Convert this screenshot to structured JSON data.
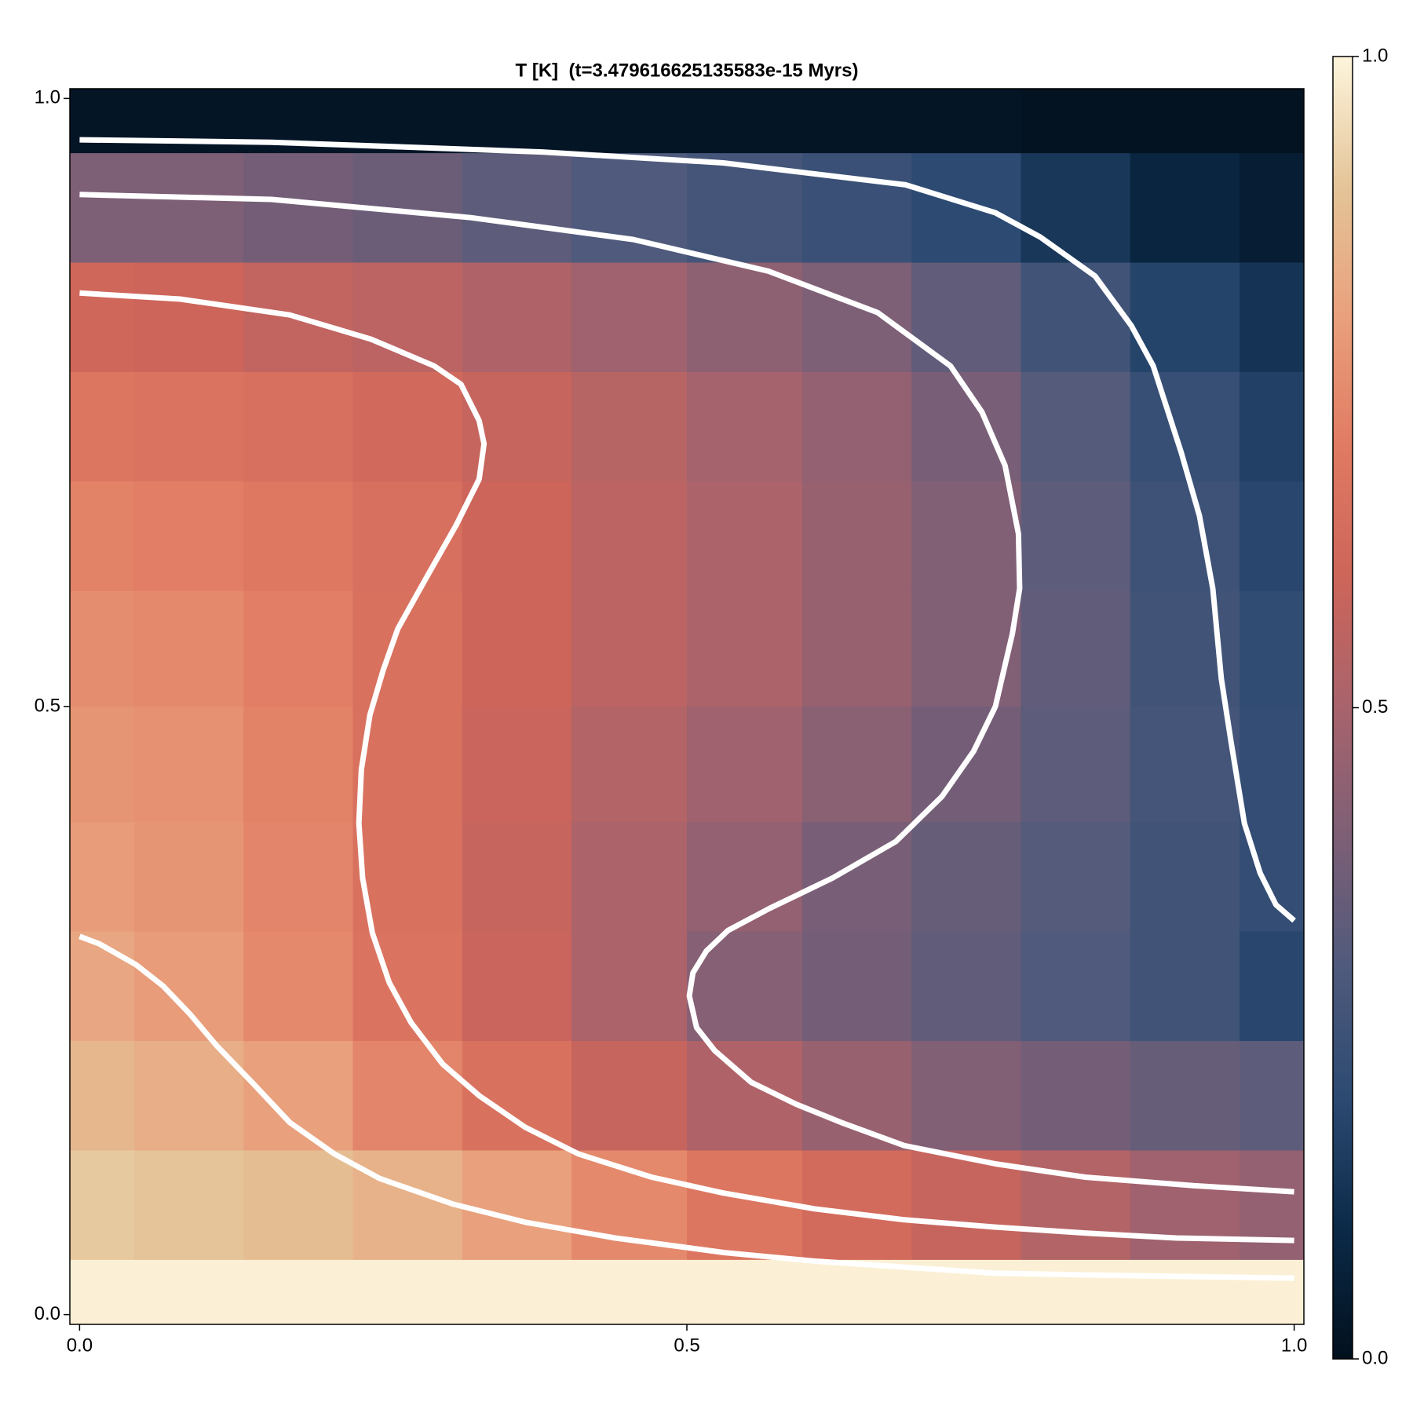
{
  "chart_data": {
    "type": "heatmap",
    "title": "T [K]  (t=3.479616625135583e-15 Myrs)",
    "x": [
      0,
      0.09,
      0.18,
      0.27,
      0.36,
      0.45,
      0.55,
      0.64,
      0.73,
      0.82,
      0.91,
      1
    ],
    "y": [
      1,
      0.91,
      0.82,
      0.73,
      0.64,
      0.55,
      0.45,
      0.36,
      0.27,
      0.18,
      0.09,
      0
    ],
    "z": [
      [
        0.02,
        0.02,
        0.02,
        0.02,
        0.02,
        0.02,
        0.02,
        0.02,
        0.02,
        0.01,
        0.01,
        0.01
      ],
      [
        0.4,
        0.4,
        0.38,
        0.36,
        0.33,
        0.3,
        0.27,
        0.24,
        0.2,
        0.14,
        0.08,
        0.05
      ],
      [
        0.61,
        0.6,
        0.57,
        0.55,
        0.52,
        0.48,
        0.44,
        0.4,
        0.34,
        0.26,
        0.18,
        0.13
      ],
      [
        0.68,
        0.67,
        0.65,
        0.62,
        0.58,
        0.54,
        0.49,
        0.45,
        0.39,
        0.31,
        0.23,
        0.17
      ],
      [
        0.72,
        0.71,
        0.69,
        0.65,
        0.6,
        0.55,
        0.51,
        0.46,
        0.41,
        0.33,
        0.25,
        0.19
      ],
      [
        0.75,
        0.74,
        0.71,
        0.66,
        0.6,
        0.55,
        0.51,
        0.46,
        0.41,
        0.34,
        0.26,
        0.21
      ],
      [
        0.77,
        0.76,
        0.72,
        0.66,
        0.59,
        0.53,
        0.48,
        0.43,
        0.38,
        0.33,
        0.27,
        0.22
      ],
      [
        0.79,
        0.77,
        0.73,
        0.66,
        0.58,
        0.51,
        0.45,
        0.39,
        0.35,
        0.31,
        0.26,
        0.22
      ],
      [
        0.82,
        0.79,
        0.74,
        0.67,
        0.59,
        0.51,
        0.42,
        0.38,
        0.34,
        0.3,
        0.26,
        0.19
      ],
      [
        0.86,
        0.84,
        0.8,
        0.73,
        0.66,
        0.58,
        0.52,
        0.46,
        0.41,
        0.38,
        0.35,
        0.33
      ],
      [
        0.91,
        0.9,
        0.88,
        0.85,
        0.8,
        0.74,
        0.68,
        0.63,
        0.58,
        0.53,
        0.48,
        0.45
      ],
      [
        0.99,
        0.99,
        0.99,
        0.99,
        0.99,
        0.99,
        0.99,
        0.99,
        0.99,
        0.99,
        0.99,
        0.99
      ]
    ],
    "xlim": [
      -0.008,
      1.008
    ],
    "ylim": [
      -0.008,
      1.008
    ],
    "xticks": [
      {
        "value": 0,
        "label": "0.0"
      },
      0.5,
      {
        "value": 1,
        "label": "1.0"
      }
    ],
    "yticks": [
      {
        "value": 0,
        "label": "0.0"
      },
      0.5,
      {
        "value": 1,
        "label": "1.0"
      }
    ],
    "colormap": [
      "#02101d",
      "#0b2a48",
      "#2c4a72",
      "#4f5a7c",
      "#7d5f76",
      "#a8636c",
      "#cd655a",
      "#e07a62",
      "#e9a07c",
      "#e4c498",
      "#fdf5dc"
    ],
    "clim": [
      0,
      1
    ],
    "cticks": [
      {
        "value": 0,
        "label": "0.0"
      },
      0.5,
      {
        "value": 1,
        "label": "1.0"
      }
    ],
    "contours": [
      {
        "color": "#ffffff",
        "x": [
          0,
          0.158,
          0.381,
          0.53,
          0.68,
          0.754,
          0.791,
          0.836,
          0.866,
          0.884,
          0.907,
          0.922,
          0.933,
          0.94,
          0.948,
          0.959,
          0.972,
          0.985,
          1.0
        ],
        "y": [
          0.966,
          0.964,
          0.956,
          0.947,
          0.929,
          0.906,
          0.886,
          0.854,
          0.813,
          0.78,
          0.709,
          0.657,
          0.597,
          0.523,
          0.471,
          0.404,
          0.363,
          0.337,
          0.324
        ]
      },
      {
        "color": "#ffffff",
        "x": [
          0,
          0.158,
          0.322,
          0.456,
          0.567,
          0.657,
          0.717,
          0.743,
          0.762,
          0.773,
          0.774,
          0.768,
          0.754,
          0.736,
          0.71,
          0.672,
          0.62,
          0.568,
          0.534,
          0.516,
          0.505,
          0.502,
          0.508,
          0.523,
          0.553,
          0.59,
          0.627,
          0.679,
          0.754,
          0.828,
          0.918,
          1.0
        ],
        "y": [
          0.921,
          0.917,
          0.902,
          0.884,
          0.858,
          0.824,
          0.78,
          0.742,
          0.698,
          0.642,
          0.597,
          0.56,
          0.5,
          0.463,
          0.426,
          0.389,
          0.359,
          0.334,
          0.316,
          0.299,
          0.281,
          0.262,
          0.236,
          0.217,
          0.191,
          0.173,
          0.158,
          0.139,
          0.124,
          0.113,
          0.106,
          0.101
        ]
      },
      {
        "color": "#ffffff",
        "x": [
          0,
          0.083,
          0.173,
          0.24,
          0.292,
          0.314,
          0.329,
          0.333,
          0.329,
          0.31,
          0.285,
          0.262,
          0.25,
          0.239,
          0.232,
          0.23,
          0.233,
          0.241,
          0.255,
          0.273,
          0.299,
          0.329,
          0.367,
          0.411,
          0.471,
          0.53,
          0.605,
          0.679,
          0.754,
          0.829,
          0.903,
          1.0
        ],
        "y": [
          0.84,
          0.835,
          0.822,
          0.802,
          0.78,
          0.765,
          0.735,
          0.716,
          0.687,
          0.649,
          0.605,
          0.564,
          0.53,
          0.493,
          0.448,
          0.404,
          0.359,
          0.314,
          0.273,
          0.24,
          0.206,
          0.18,
          0.154,
          0.132,
          0.113,
          0.1,
          0.087,
          0.078,
          0.072,
          0.067,
          0.063,
          0.061
        ]
      },
      {
        "color": "#ffffff",
        "x": [
          0,
          0.016,
          0.046,
          0.069,
          0.091,
          0.113,
          0.143,
          0.173,
          0.21,
          0.247,
          0.307,
          0.367,
          0.441,
          0.531,
          0.605,
          0.68,
          0.754,
          0.866,
          1.0
        ],
        "y": [
          0.311,
          0.305,
          0.288,
          0.27,
          0.247,
          0.221,
          0.19,
          0.158,
          0.132,
          0.112,
          0.091,
          0.076,
          0.063,
          0.051,
          0.044,
          0.039,
          0.034,
          0.032,
          0.03
        ]
      }
    ]
  }
}
